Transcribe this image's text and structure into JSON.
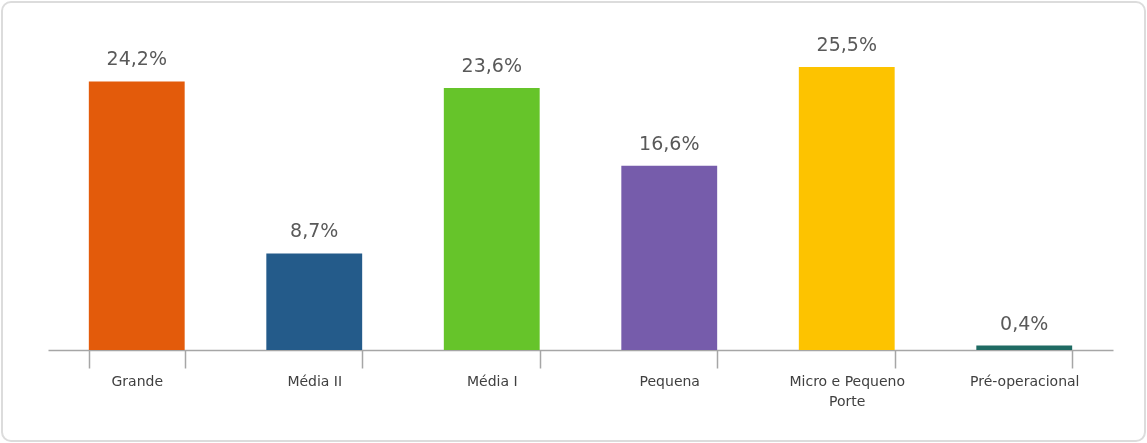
{
  "chart_data": {
    "type": "bar",
    "categories": [
      "Grande",
      "Média II",
      "Média I",
      "Pequena",
      "Micro e Pequeno Porte",
      "Pré-operacional"
    ],
    "values": [
      24.2,
      8.7,
      23.6,
      16.6,
      25.5,
      0.4
    ],
    "value_labels": [
      "24,2%",
      "8,7%",
      "23,6%",
      "16,6%",
      "25,5%",
      "0,4%"
    ],
    "colors": [
      "#e35b0b",
      "#245b8a",
      "#66c42a",
      "#765cab",
      "#fdc300",
      "#1f6b63"
    ]
  }
}
